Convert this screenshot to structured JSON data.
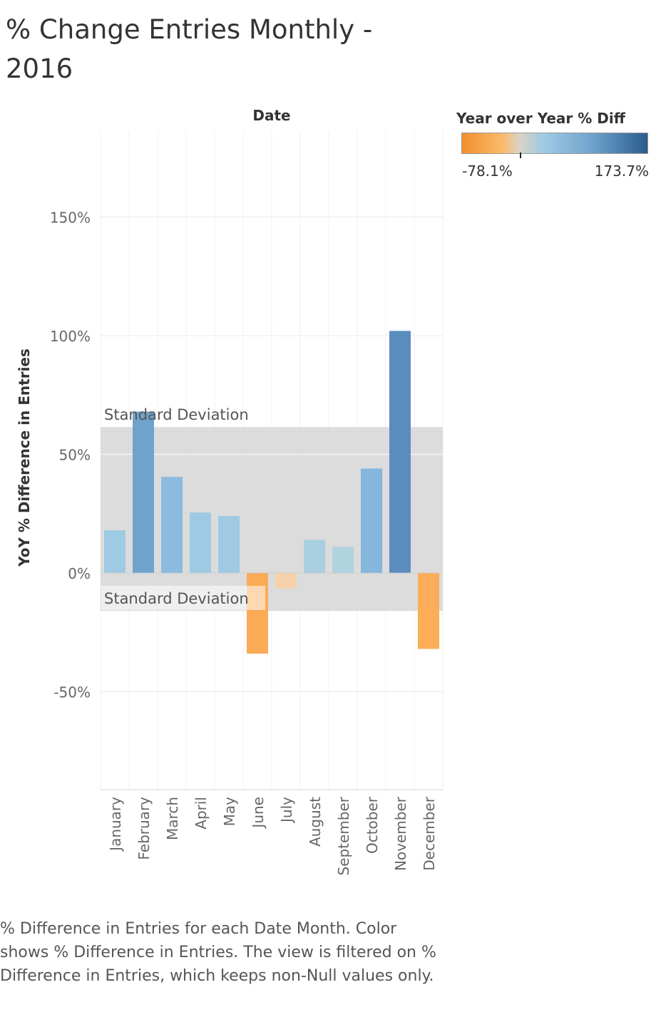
{
  "title": "% Change Entries Monthly - 2016",
  "column_header": "Date",
  "legend": {
    "title": "Year over Year % Diff",
    "min_label": "-78.1%",
    "max_label": "173.7%",
    "gradient_colors": [
      "#f28e2b",
      "#fbbb6c",
      "#d9d3c6",
      "#9fcae5",
      "#6fa4cd",
      "#2a5c8f"
    ]
  },
  "caption": "% Difference in Entries for each Date Month.  Color shows % Difference in Entries. The view is filtered on % Difference in Entries, which keeps non-Null values only.",
  "chart_data": {
    "type": "bar",
    "xlabel": "",
    "ylabel": "YoY % Difference in Entries",
    "ylim": [
      -92,
      185
    ],
    "yticks": [
      150,
      100,
      50,
      0,
      -50
    ],
    "ytick_labels": [
      "150%",
      "100%",
      "50%",
      "0%",
      "-50%"
    ],
    "categories": [
      "January",
      "February",
      "March",
      "April",
      "May",
      "June",
      "July",
      "August",
      "September",
      "October",
      "November",
      "December"
    ],
    "values": [
      18,
      68,
      40.5,
      25.5,
      24,
      -34,
      -6.5,
      14,
      11,
      44,
      102,
      -32
    ],
    "colors": [
      "#9ecae4",
      "#6fa3cc",
      "#8bbbe0",
      "#9ecae4",
      "#9ecae4",
      "#fbab55",
      "#f6d2aa",
      "#a9cfe1",
      "#b1d2df",
      "#84b6de",
      "#5a8dbe",
      "#fcad57"
    ],
    "reference_band": {
      "label_top": "Standard Deviation",
      "label_bottom": "Standard Deviation",
      "upper": 61.5,
      "lower": -16
    },
    "grid": true
  }
}
